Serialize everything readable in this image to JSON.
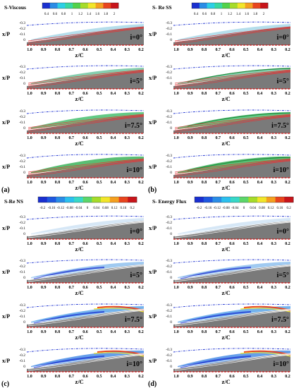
{
  "figure": {
    "panel_letters": [
      "(a)",
      "(b)",
      "(c)",
      "(d)"
    ],
    "x_axis_label": "z/C",
    "y_axis_label": "x/P",
    "x_ticks": [
      "1.0",
      "0.9",
      "0.8",
      "0.7",
      "0.6",
      "0.5",
      "0.4",
      "0.3",
      "0.2"
    ],
    "y_ticks": [
      "-0.3",
      "-0.2",
      "-0.1",
      "0"
    ],
    "incidence_labels": [
      "i=0°",
      "i=5°",
      "i=7.5°",
      "i=10°"
    ]
  },
  "panels": [
    {
      "letter": "(a)",
      "colorbar_title": "S-Viscous",
      "colorbar_ticks": [
        "0.4",
        "0.6",
        "0.8",
        "1",
        "1.2",
        "1.4",
        "1.6",
        "1.8",
        "2"
      ],
      "colorbar_colors": [
        "#1a2fd0",
        "#2a8de6",
        "#2ccfe6",
        "#38d8a0",
        "#52d24a",
        "#a6dc2a",
        "#f2e62a",
        "#f5a020",
        "#e8451e",
        "#c8141a"
      ]
    },
    {
      "letter": "(b)",
      "colorbar_title": "S- Re SS",
      "colorbar_ticks": [
        "0.4",
        "0.6",
        "0.8",
        "1",
        "1.2",
        "1.4",
        "1.6",
        "1.8",
        "2"
      ],
      "colorbar_colors": [
        "#1a2fd0",
        "#2a8de6",
        "#2ccfe6",
        "#38d8a0",
        "#52d24a",
        "#a6dc2a",
        "#f2e62a",
        "#f5a020",
        "#e8451e",
        "#c8141a"
      ]
    },
    {
      "letter": "(c)",
      "colorbar_title": "S-Re NS",
      "colorbar_ticks": [
        "-0.2",
        "-0.16",
        "-0.12",
        "-0.08",
        "-0.04",
        "0",
        "0.04",
        "0.08",
        "0.12",
        "0.16",
        "0.2"
      ],
      "colorbar_colors": [
        "#1a2fd0",
        "#1f58e0",
        "#2a8de6",
        "#2cc0ee",
        "#38d8c8",
        "#5cd66a",
        "#a6dc2a",
        "#f2e62a",
        "#f5a020",
        "#e8451e",
        "#c8141a"
      ]
    },
    {
      "letter": "(d)",
      "colorbar_title": "S- Energy Flux",
      "colorbar_ticks": [
        "-0.2",
        "-0.16",
        "-0.12",
        "-0.08",
        "-0.04",
        "0",
        "0.04",
        "0.08",
        "0.12",
        "0.16",
        "0.2"
      ],
      "colorbar_colors": [
        "#1a2fd0",
        "#1f58e0",
        "#2a8de6",
        "#2cc0ee",
        "#38d8c8",
        "#5cd66a",
        "#a6dc2a",
        "#f2e62a",
        "#f5a020",
        "#e8451e",
        "#c8141a"
      ]
    }
  ]
}
